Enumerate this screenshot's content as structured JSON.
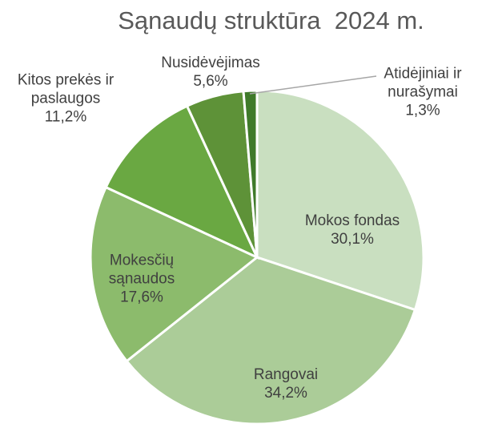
{
  "chart_data": {
    "type": "pie",
    "title": "Sąnaudų struktūra  2024 m.",
    "categories": [
      "Mokos fondas",
      "Rangovai",
      "Mokesčių sąnaudos",
      "Kitos prekės ir paslaugos",
      "Nusidėvėjimas",
      "Atidėjiniai ir nurašymai"
    ],
    "values": [
      30.1,
      34.2,
      17.6,
      11.2,
      5.6,
      1.3
    ],
    "value_labels": [
      "30,1%",
      "34,2%",
      "17,6%",
      "11,2%",
      "5,6%",
      "1,3%"
    ],
    "colors": [
      "#c9dfc0",
      "#abcc98",
      "#8cbb6c",
      "#6aa842",
      "#5e9238",
      "#3f7a2a"
    ]
  }
}
